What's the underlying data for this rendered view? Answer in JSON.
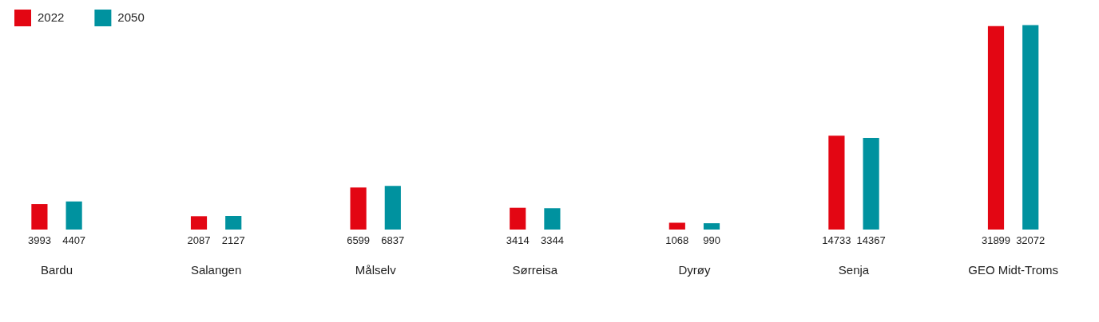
{
  "chart_data": {
    "type": "bar",
    "categories": [
      "Bardu",
      "Salangen",
      "Målselv",
      "Sørreisa",
      "Dyrøy",
      "Senja",
      "GEO Midt-Troms"
    ],
    "series": [
      {
        "name": "2022",
        "color": "#e30613",
        "values": [
          3993,
          2087,
          6599,
          3414,
          1068,
          14733,
          31899
        ]
      },
      {
        "name": "2050",
        "color": "#00929f",
        "values": [
          4407,
          2127,
          6837,
          3344,
          990,
          14367,
          32072
        ]
      }
    ],
    "data_labels": true,
    "legend": "top left",
    "grid": false
  }
}
